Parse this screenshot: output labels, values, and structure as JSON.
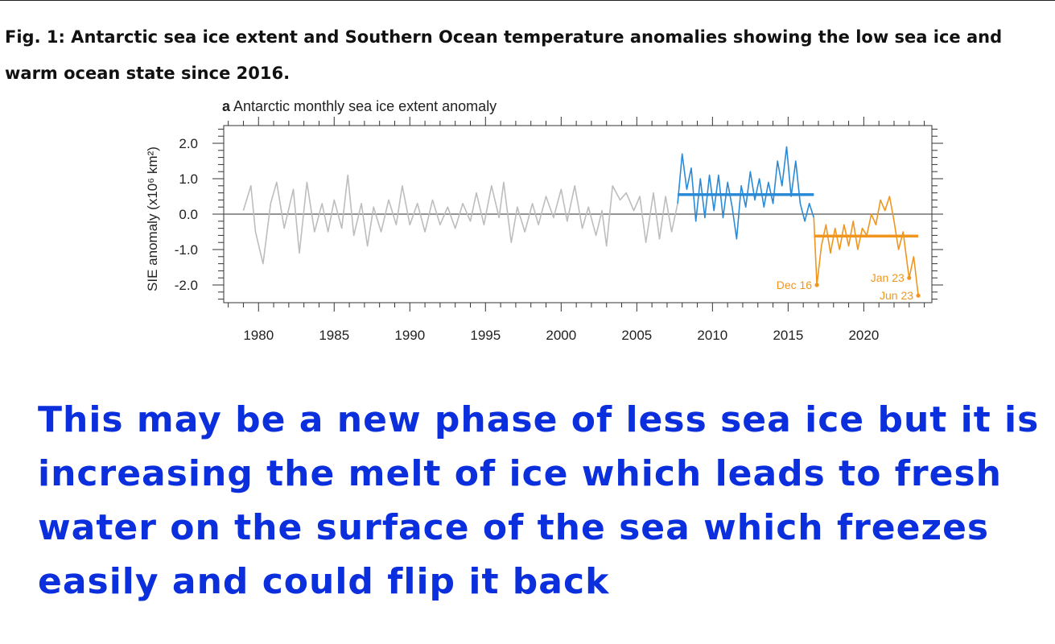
{
  "caption": "Fig. 1: Antarctic sea ice extent and Southern Ocean temperature anomalies showing the low sea ice and warm ocean state since 2016.",
  "overlay_text": "This may be a new phase of less sea ice but it is increasing the melt of ice which leads to fresh water on the surface of the sea which freezes easily and could flip it back",
  "colors": {
    "early": "#bdbdbd",
    "mid": "#2b8ad6",
    "recent": "#f0961e",
    "overlay": "#0b2fdc"
  },
  "chart_data": {
    "type": "line",
    "panel_letter": "a",
    "title": "Antarctic monthly sea ice extent anomaly",
    "xlabel": "",
    "ylabel": "SIE anomaly (x10⁶ km²)",
    "xlim": [
      1977.7,
      2024.5
    ],
    "ylim": [
      -2.5,
      2.5
    ],
    "xticks": [
      "1980",
      "1985",
      "1990",
      "1995",
      "2000",
      "2005",
      "2010",
      "2015",
      "2020"
    ],
    "yticks": [
      "2.0",
      "1.0",
      "0.0",
      "-1.0",
      "-2.0"
    ],
    "zero_line": 0,
    "series": [
      {
        "color_key": "early",
        "points": [
          [
            1979.0,
            0.1
          ],
          [
            1979.5,
            0.8
          ],
          [
            1979.8,
            -0.5
          ],
          [
            1980.3,
            -1.4
          ],
          [
            1980.8,
            0.3
          ],
          [
            1981.2,
            0.9
          ],
          [
            1981.7,
            -0.4
          ],
          [
            1982.3,
            0.7
          ],
          [
            1982.7,
            -1.1
          ],
          [
            1983.2,
            0.9
          ],
          [
            1983.7,
            -0.5
          ],
          [
            1984.2,
            0.3
          ],
          [
            1984.6,
            -0.5
          ],
          [
            1985.0,
            0.4
          ],
          [
            1985.5,
            -0.4
          ],
          [
            1985.9,
            1.1
          ],
          [
            1986.3,
            -0.6
          ],
          [
            1986.8,
            0.3
          ],
          [
            1987.2,
            -0.9
          ],
          [
            1987.6,
            0.2
          ],
          [
            1988.1,
            -0.5
          ],
          [
            1988.6,
            0.4
          ],
          [
            1989.1,
            -0.3
          ],
          [
            1989.5,
            0.8
          ],
          [
            1990.0,
            -0.3
          ],
          [
            1990.5,
            0.3
          ],
          [
            1991.0,
            -0.5
          ],
          [
            1991.5,
            0.4
          ],
          [
            1992.0,
            -0.3
          ],
          [
            1992.5,
            0.2
          ],
          [
            1993.0,
            -0.4
          ],
          [
            1993.5,
            0.3
          ],
          [
            1994.0,
            -0.2
          ],
          [
            1994.4,
            0.6
          ],
          [
            1994.9,
            -0.3
          ],
          [
            1995.4,
            0.8
          ],
          [
            1995.9,
            -0.1
          ],
          [
            1996.2,
            0.9
          ],
          [
            1996.7,
            -0.8
          ],
          [
            1997.1,
            0.2
          ],
          [
            1997.6,
            -0.5
          ],
          [
            1998.1,
            0.3
          ],
          [
            1998.5,
            -0.3
          ],
          [
            1999.0,
            0.5
          ],
          [
            1999.5,
            -0.1
          ],
          [
            2000.0,
            0.7
          ],
          [
            2000.4,
            -0.2
          ],
          [
            2000.9,
            0.8
          ],
          [
            2001.4,
            -0.4
          ],
          [
            2001.8,
            0.2
          ],
          [
            2002.3,
            -0.6
          ],
          [
            2002.7,
            0.1
          ],
          [
            2003.0,
            -0.9
          ],
          [
            2003.4,
            0.8
          ],
          [
            2003.9,
            0.4
          ],
          [
            2004.3,
            0.6
          ],
          [
            2004.8,
            0.1
          ],
          [
            2005.2,
            0.5
          ],
          [
            2005.6,
            -0.8
          ],
          [
            2006.1,
            0.6
          ],
          [
            2006.5,
            -0.7
          ],
          [
            2006.9,
            0.5
          ],
          [
            2007.3,
            -0.5
          ],
          [
            2007.7,
            0.3
          ]
        ]
      },
      {
        "color_key": "mid",
        "mean": 0.55,
        "points": [
          [
            2007.7,
            0.3
          ],
          [
            2008.0,
            1.7
          ],
          [
            2008.3,
            0.7
          ],
          [
            2008.6,
            1.3
          ],
          [
            2008.9,
            -0.2
          ],
          [
            2009.2,
            1.0
          ],
          [
            2009.5,
            -0.1
          ],
          [
            2009.8,
            1.1
          ],
          [
            2010.1,
            0.1
          ],
          [
            2010.4,
            1.1
          ],
          [
            2010.7,
            -0.1
          ],
          [
            2011.0,
            0.9
          ],
          [
            2011.3,
            0.2
          ],
          [
            2011.6,
            -0.7
          ],
          [
            2011.9,
            0.8
          ],
          [
            2012.2,
            0.2
          ],
          [
            2012.5,
            1.2
          ],
          [
            2012.8,
            0.4
          ],
          [
            2013.1,
            1.0
          ],
          [
            2013.4,
            0.2
          ],
          [
            2013.7,
            0.9
          ],
          [
            2014.0,
            0.3
          ],
          [
            2014.3,
            1.5
          ],
          [
            2014.6,
            0.8
          ],
          [
            2014.9,
            1.9
          ],
          [
            2015.2,
            0.5
          ],
          [
            2015.5,
            1.5
          ],
          [
            2015.8,
            0.3
          ],
          [
            2016.1,
            -0.2
          ],
          [
            2016.4,
            0.3
          ],
          [
            2016.7,
            -0.1
          ]
        ]
      },
      {
        "color_key": "recent",
        "mean": -0.62,
        "points": [
          [
            2016.7,
            -0.1
          ],
          [
            2016.9,
            -2.0
          ],
          [
            2017.2,
            -0.9
          ],
          [
            2017.5,
            -0.3
          ],
          [
            2017.8,
            -1.1
          ],
          [
            2018.1,
            -0.4
          ],
          [
            2018.4,
            -1.0
          ],
          [
            2018.7,
            -0.3
          ],
          [
            2019.0,
            -0.9
          ],
          [
            2019.3,
            -0.2
          ],
          [
            2019.6,
            -1.0
          ],
          [
            2019.9,
            -0.4
          ],
          [
            2020.2,
            -0.6
          ],
          [
            2020.5,
            0.0
          ],
          [
            2020.8,
            -0.3
          ],
          [
            2021.1,
            0.4
          ],
          [
            2021.4,
            0.1
          ],
          [
            2021.7,
            0.5
          ],
          [
            2022.0,
            -0.2
          ],
          [
            2022.3,
            -1.0
          ],
          [
            2022.6,
            -0.5
          ],
          [
            2022.9,
            -1.5
          ],
          [
            2023.0,
            -1.8
          ],
          [
            2023.3,
            -1.2
          ],
          [
            2023.6,
            -2.3
          ]
        ]
      }
    ],
    "annotations": [
      {
        "label": "Dec 16",
        "x": 2016.9,
        "y": -2.0
      },
      {
        "label": "Jan 23",
        "x": 2023.0,
        "y": -1.8
      },
      {
        "label": "Jun 23",
        "x": 2023.6,
        "y": -2.3
      }
    ]
  }
}
